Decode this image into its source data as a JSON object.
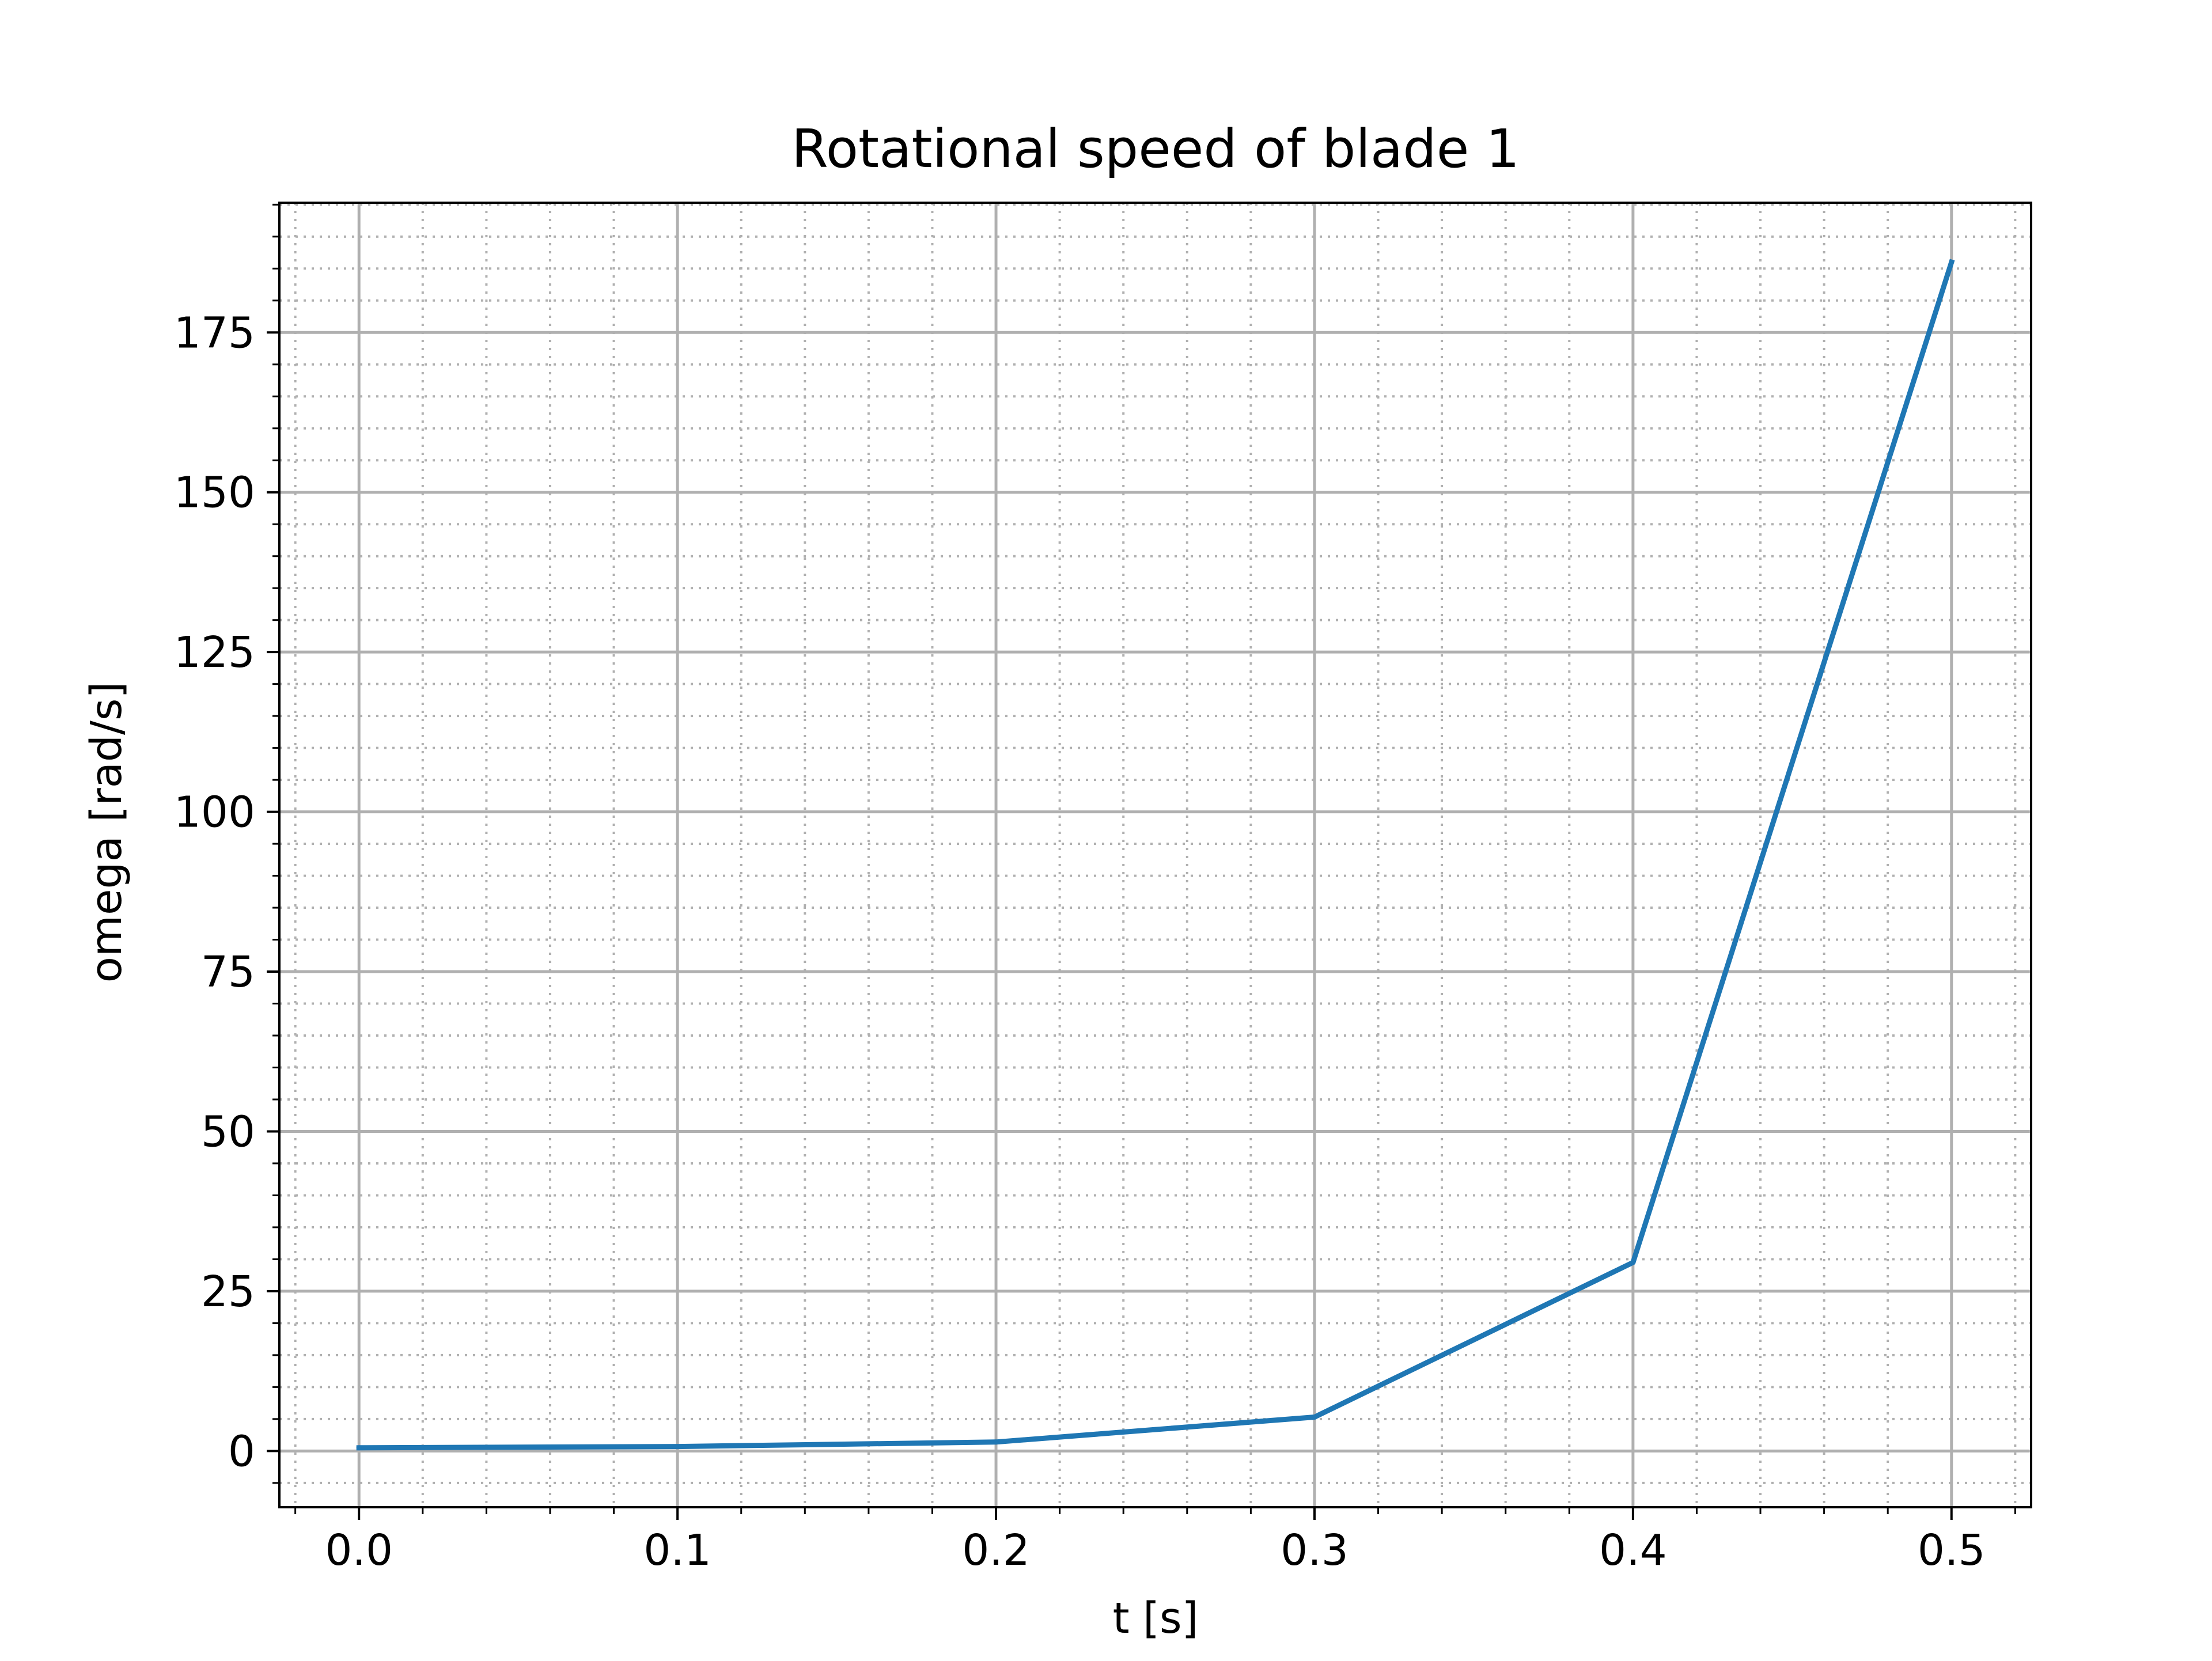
{
  "chart_data": {
    "type": "line",
    "title": "Rotational speed of blade 1",
    "xlabel": "t [s]",
    "ylabel": "omega [rad/s]",
    "x": [
      0.0,
      0.1,
      0.2,
      0.3,
      0.4,
      0.5
    ],
    "series": [
      {
        "values": [
          0.5,
          0.7,
          1.4,
          5.3,
          29.5,
          186.0
        ],
        "color": "#1f77b4"
      }
    ],
    "xlim": [
      -0.025,
      0.525
    ],
    "ylim": [
      -8.8,
      195.3
    ],
    "xticks": [
      0.0,
      0.1,
      0.2,
      0.3,
      0.4,
      0.5
    ],
    "xtick_labels": [
      "0.0",
      "0.1",
      "0.2",
      "0.3",
      "0.4",
      "0.5"
    ],
    "yticks": [
      0,
      25,
      50,
      75,
      100,
      125,
      150,
      175
    ],
    "ytick_labels": [
      "0",
      "25",
      "50",
      "75",
      "100",
      "125",
      "150",
      "175"
    ],
    "x_minor_step": 0.02,
    "y_minor_step": 5,
    "grid": "major solid, minor dotted",
    "legend": "none"
  }
}
